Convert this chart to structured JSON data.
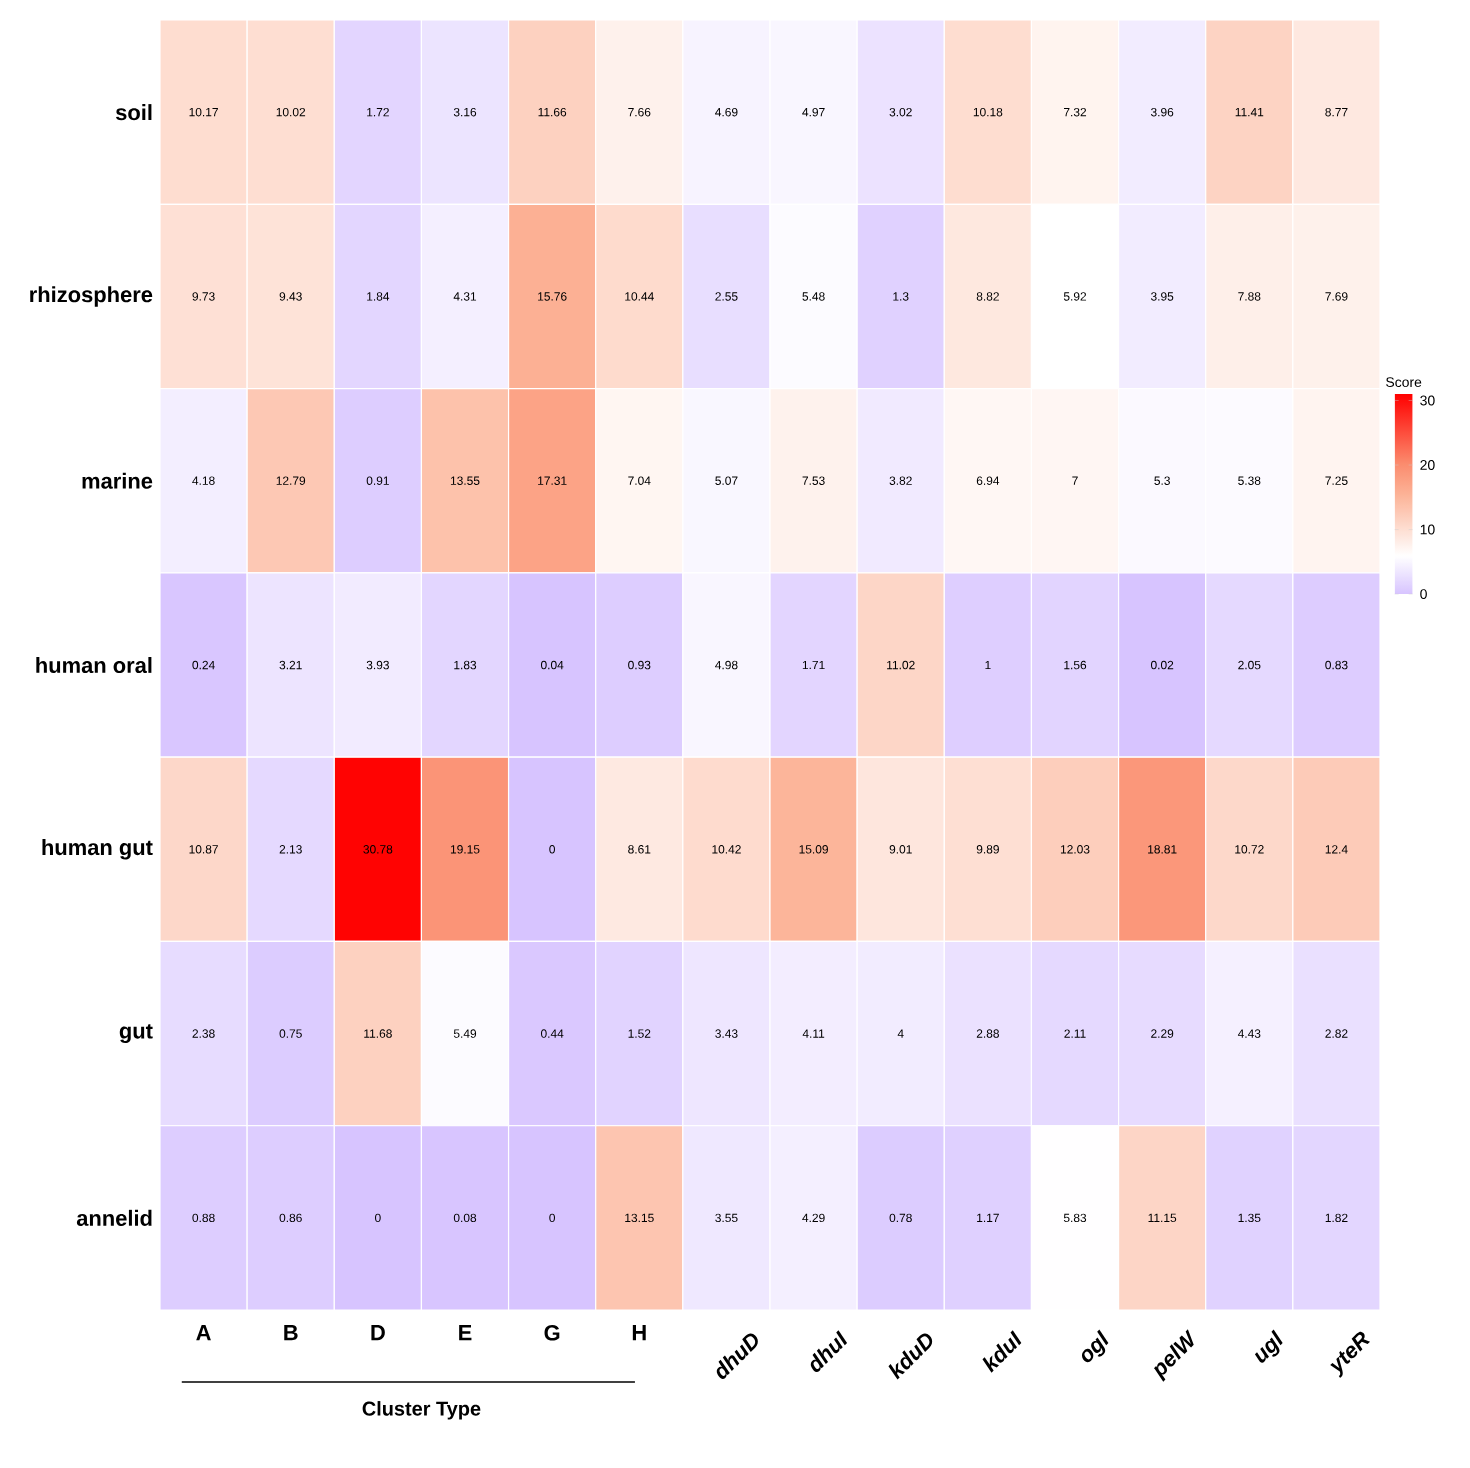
{
  "chart_data": {
    "type": "heatmap",
    "xlabel": "Cluster Type",
    "clabel": "Score",
    "categories": [
      "A",
      "B",
      "D",
      "E",
      "G",
      "H",
      "dhuD",
      "dhuI",
      "kduD",
      "kduI",
      "ogl",
      "pelW",
      "ugl",
      "yteR"
    ],
    "y_categories": [
      "soil",
      "rhizosphere",
      "marine",
      "human oral",
      "human gut",
      "gut",
      "annelid"
    ],
    "cells": [
      [
        10.17,
        10.02,
        1.72,
        3.16,
        11.66,
        7.66,
        4.69,
        4.97,
        3.02,
        10.18,
        7.32,
        3.96,
        11.41,
        8.77
      ],
      [
        9.73,
        9.43,
        1.84,
        4.31,
        15.76,
        10.44,
        2.55,
        5.48,
        1.3,
        8.82,
        5.92,
        3.95,
        7.88,
        7.69
      ],
      [
        4.18,
        12.79,
        0.91,
        13.55,
        17.31,
        7.04,
        5.07,
        7.53,
        3.82,
        6.94,
        7,
        5.3,
        5.38,
        7.25
      ],
      [
        0.24,
        3.21,
        3.93,
        1.83,
        0.04,
        0.93,
        4.98,
        1.71,
        11.02,
        1,
        1.56,
        0.02,
        2.05,
        0.83
      ],
      [
        10.87,
        2.13,
        30.78,
        19.15,
        0,
        8.61,
        10.42,
        15.09,
        9.01,
        9.89,
        12.03,
        18.81,
        10.72,
        12.4
      ],
      [
        2.38,
        0.75,
        11.68,
        5.49,
        0.44,
        1.52,
        3.43,
        4.11,
        4,
        2.88,
        2.11,
        2.29,
        4.43,
        2.82
      ],
      [
        0.88,
        0.86,
        0,
        0.08,
        0,
        13.15,
        3.55,
        4.29,
        0.78,
        1.17,
        5.83,
        11.15,
        1.35,
        1.82
      ]
    ],
    "clim": [
      0,
      31
    ],
    "cticks": [
      0,
      10,
      20,
      30
    ],
    "data_labels": true
  }
}
